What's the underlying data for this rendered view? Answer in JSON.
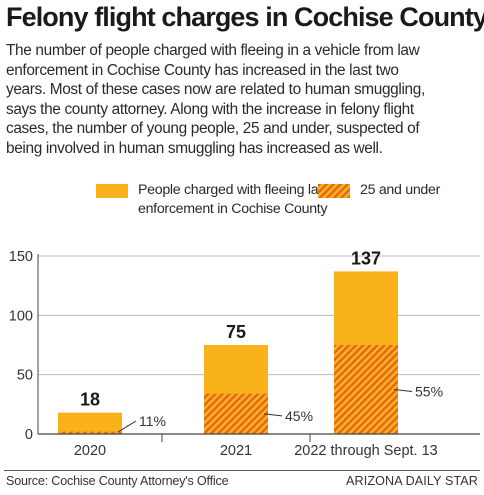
{
  "header": {
    "title": "Felony flight charges in Cochise County",
    "description_lines": [
      "The number of people charged with fleeing in a vehicle from law",
      "enforcement in Cochise County has increased in the last two",
      "years. Most of these cases now are related to human smuggling,",
      "says the county attorney. Along with the increase in felony flight",
      "cases, the number of young people, 25 and under, suspected of",
      "being involved in human smuggling has increased as well."
    ]
  },
  "legend": {
    "total_lines": [
      "People charged with fleeing law",
      "enforcement in Cochise County"
    ],
    "young_label": "25 and under"
  },
  "colors": {
    "total": "#f9b21a",
    "hatch": "#e2661f",
    "axis": "#444444",
    "grid": "#bbbbbb"
  },
  "chart_data": {
    "type": "bar",
    "categories": [
      "2020",
      "2021",
      "2022 through Sept. 13"
    ],
    "series": [
      {
        "name": "People charged with fleeing law enforcement in Cochise County",
        "values": [
          18,
          75,
          137
        ]
      },
      {
        "name": "25 and under",
        "values": [
          2,
          34,
          75
        ]
      }
    ],
    "data_labels": [
      "18",
      "75",
      "137"
    ],
    "percent_labels": [
      "11%",
      "45%",
      "55%"
    ],
    "yticks": [
      0,
      50,
      100,
      150
    ],
    "ylim": [
      0,
      150
    ],
    "grid": true,
    "legend_position": "top"
  },
  "footer": {
    "source": "Source: Cochise County Attorney's Office",
    "credit": "ARIZONA DAILY STAR"
  }
}
